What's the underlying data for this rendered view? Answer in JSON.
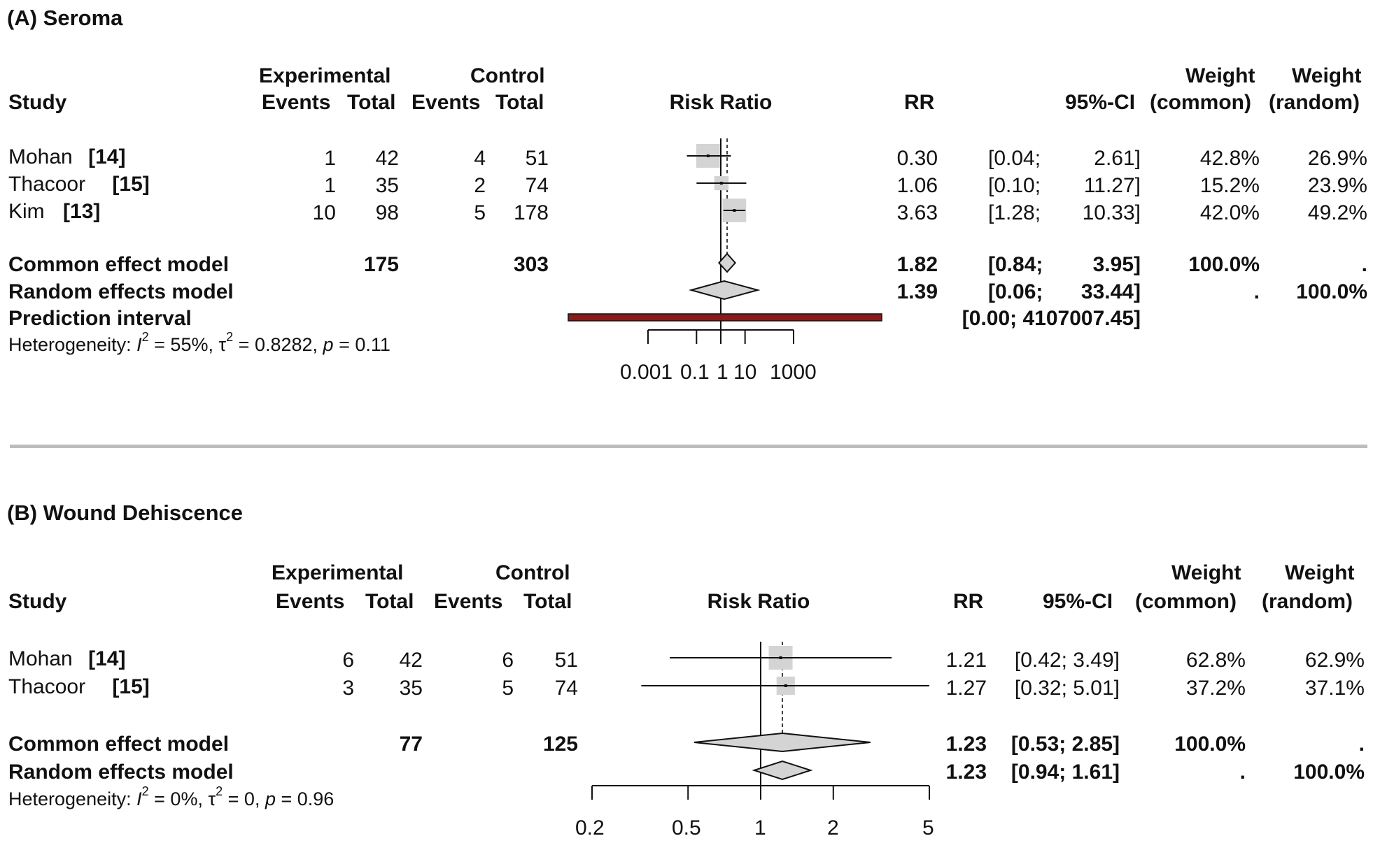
{
  "panels": [
    {
      "panel_title": "(A) Seroma",
      "headers": {
        "study": "Study",
        "experimental": "Experimental",
        "control": "Control",
        "events": "Events",
        "total": "Total",
        "plot": "Risk Ratio",
        "rr": "RR",
        "ci": "95%-CI",
        "weight": "Weight",
        "common": "(common)",
        "random": "(random)"
      },
      "studies": [
        {
          "name": "Mohan",
          "ref": "[14]",
          "exp_events": "1",
          "exp_total": "42",
          "ctl_events": "4",
          "ctl_total": "51",
          "rr": "0.30",
          "ci_lo": "[0.04;",
          "ci_hi": "2.61]",
          "w_common": "42.8%",
          "w_random": "26.9%"
        },
        {
          "name": "Thacoor",
          "ref": "[15]",
          "exp_events": "1",
          "exp_total": "35",
          "ctl_events": "2",
          "ctl_total": "74",
          "rr": "1.06",
          "ci_lo": "[0.10;",
          "ci_hi": "11.27]",
          "w_common": "15.2%",
          "w_random": "23.9%"
        },
        {
          "name": "Kim",
          "ref": "[13]",
          "exp_events": "10",
          "exp_total": "98",
          "ctl_events": "5",
          "ctl_total": "178",
          "rr": "3.63",
          "ci_lo": "[1.28;",
          "ci_hi": "10.33]",
          "w_common": "42.0%",
          "w_random": "49.2%"
        }
      ],
      "common": {
        "label": "Common effect model",
        "exp_total": "175",
        "ctl_total": "303",
        "rr": "1.82",
        "ci_lo": "[0.84;",
        "ci_hi": "3.95]",
        "w_common": "100.0%",
        "w_random": "."
      },
      "random": {
        "label": "Random effects model",
        "rr": "1.39",
        "ci_lo": "[0.06;",
        "ci_hi": "33.44]",
        "w_common": ".",
        "w_random": "100.0%"
      },
      "prediction": {
        "label": "Prediction interval",
        "ci": "[0.00; 4107007.45]"
      },
      "heterogeneity": {
        "prefix": "Heterogeneity: ",
        "i2": "= 55%, ",
        "tau2": "= 0.8282, ",
        "p": "= 0.11"
      },
      "tick_labels": [
        "0.001",
        "0.1",
        "1",
        "10",
        "1000"
      ]
    },
    {
      "panel_title": "(B) Wound Dehiscence",
      "headers": {
        "study": "Study",
        "experimental": "Experimental",
        "control": "Control",
        "events": "Events",
        "total": "Total",
        "plot": "Risk Ratio",
        "rr": "RR",
        "ci": "95%-CI",
        "weight": "Weight",
        "common": "(common)",
        "random": "(random)"
      },
      "studies": [
        {
          "name": "Mohan",
          "ref": "[14]",
          "exp_events": "6",
          "exp_total": "42",
          "ctl_events": "6",
          "ctl_total": "51",
          "rr": "1.21",
          "ci": "[0.42; 3.49]",
          "w_common": "62.8%",
          "w_random": "62.9%"
        },
        {
          "name": "Thacoor",
          "ref": "[15]",
          "exp_events": "3",
          "exp_total": "35",
          "ctl_events": "5",
          "ctl_total": "74",
          "rr": "1.27",
          "ci": "[0.32; 5.01]",
          "w_common": "37.2%",
          "w_random": "37.1%"
        }
      ],
      "common": {
        "label": "Common effect model",
        "exp_total": "77",
        "ctl_total": "125",
        "rr": "1.23",
        "ci": "[0.53; 2.85]",
        "w_common": "100.0%",
        "w_random": "."
      },
      "random": {
        "label": "Random effects model",
        "rr": "1.23",
        "ci": "[0.94; 1.61]",
        "w_common": ".",
        "w_random": "100.0%"
      },
      "heterogeneity": {
        "prefix": "Heterogeneity: ",
        "i2": "= 0%, ",
        "tau2": "= 0, ",
        "p": "= 0.96"
      },
      "tick_labels": [
        "0.2",
        "0.5",
        "1",
        "2",
        "5"
      ]
    }
  ],
  "chart_data": [
    {
      "type": "forest",
      "title": "(A) Seroma",
      "xlabel": "Risk Ratio",
      "x_scale": "log",
      "xlim": [
        0.001,
        1000
      ],
      "ticks": [
        0.001,
        0.1,
        1,
        10,
        1000
      ],
      "studies": [
        {
          "name": "Mohan",
          "rr": 0.3,
          "lo": 0.04,
          "hi": 2.61,
          "weight_common": 42.8
        },
        {
          "name": "Thacoor",
          "rr": 1.06,
          "lo": 0.1,
          "hi": 11.27,
          "weight_common": 15.2
        },
        {
          "name": "Kim",
          "rr": 3.63,
          "lo": 1.28,
          "hi": 10.33,
          "weight_common": 42.0
        }
      ],
      "common": {
        "rr": 1.82,
        "lo": 0.84,
        "hi": 3.95
      },
      "random": {
        "rr": 1.39,
        "lo": 0.06,
        "hi": 33.44
      },
      "prediction": {
        "lo": 0.0,
        "hi": 4107007.45
      },
      "prediction_color": "#8b1a1a"
    },
    {
      "type": "forest",
      "title": "(B) Wound Dehiscence",
      "xlabel": "Risk Ratio",
      "x_scale": "log",
      "xlim": [
        0.2,
        5
      ],
      "ticks": [
        0.2,
        0.5,
        1,
        2,
        5
      ],
      "studies": [
        {
          "name": "Mohan",
          "rr": 1.21,
          "lo": 0.42,
          "hi": 3.49,
          "weight_common": 62.8
        },
        {
          "name": "Thacoor",
          "rr": 1.27,
          "lo": 0.32,
          "hi": 5.01,
          "weight_common": 37.2
        }
      ],
      "common": {
        "rr": 1.23,
        "lo": 0.53,
        "hi": 2.85
      },
      "random": {
        "rr": 1.23,
        "lo": 0.94,
        "hi": 1.61
      }
    }
  ]
}
